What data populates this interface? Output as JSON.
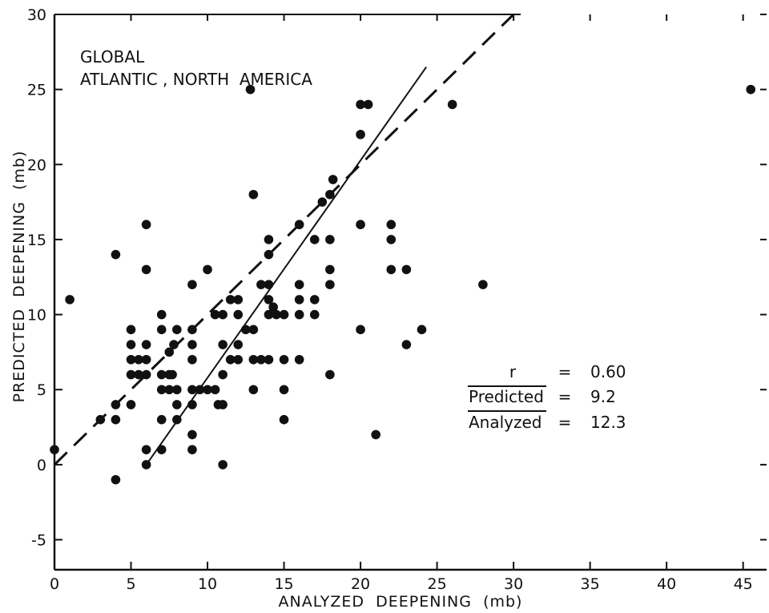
{
  "chart_data": {
    "type": "scatter",
    "title": "",
    "xlabel": "ANALYZED  DEEPENING  (mb)",
    "ylabel": "PREDICTED  DEEPENING  (mb)",
    "xlim": [
      0,
      45
    ],
    "ylim": [
      -7,
      30
    ],
    "xticks": [
      0,
      5,
      10,
      15,
      20,
      25,
      30,
      35,
      40,
      45
    ],
    "yticks": [
      -5,
      0,
      5,
      10,
      15,
      20,
      25,
      30
    ],
    "annotations": [
      "GLOBAL",
      "ATLANTIC , NORTH  AMERICA"
    ],
    "stats": [
      {
        "label": "r",
        "eq": "=",
        "value": "0.60",
        "overline": false
      },
      {
        "label": "Predicted",
        "eq": "=",
        "value": "9.2",
        "overline": true
      },
      {
        "label": "Analyzed",
        "eq": "=",
        "value": "12.3",
        "overline": true
      }
    ],
    "lines": [
      {
        "name": "",
        "style": "dashed",
        "points": [
          [
            0,
            0
          ],
          [
            30,
            30
          ]
        ]
      },
      {
        "name": "",
        "style": "solid",
        "points": [
          [
            6,
            0
          ],
          [
            24.3,
            26.5
          ]
        ]
      }
    ],
    "points": [
      [
        0,
        1
      ],
      [
        1,
        11
      ],
      [
        3,
        3
      ],
      [
        4,
        3
      ],
      [
        4,
        4
      ],
      [
        4,
        14
      ],
      [
        4,
        -1
      ],
      [
        5,
        4
      ],
      [
        5,
        6
      ],
      [
        5,
        7
      ],
      [
        5,
        8
      ],
      [
        5,
        9
      ],
      [
        5.5,
        7
      ],
      [
        5.5,
        6
      ],
      [
        6,
        7
      ],
      [
        6,
        8
      ],
      [
        6,
        6
      ],
      [
        6,
        16
      ],
      [
        6,
        13
      ],
      [
        6,
        1
      ],
      [
        6,
        0
      ],
      [
        7,
        1
      ],
      [
        7,
        3
      ],
      [
        7,
        5
      ],
      [
        7,
        6
      ],
      [
        7,
        9
      ],
      [
        7,
        10
      ],
      [
        7.5,
        5
      ],
      [
        7.5,
        6
      ],
      [
        7.5,
        7.5
      ],
      [
        7.7,
        6
      ],
      [
        7.8,
        8
      ],
      [
        8,
        3
      ],
      [
        8,
        4
      ],
      [
        8,
        5
      ],
      [
        8,
        9
      ],
      [
        9,
        1
      ],
      [
        9,
        2
      ],
      [
        9,
        4
      ],
      [
        9,
        5
      ],
      [
        9,
        7
      ],
      [
        9,
        8
      ],
      [
        9,
        9
      ],
      [
        9,
        12
      ],
      [
        9.5,
        5
      ],
      [
        10,
        5
      ],
      [
        10,
        13
      ],
      [
        10.5,
        5
      ],
      [
        11,
        0
      ],
      [
        11,
        4
      ],
      [
        11,
        6
      ],
      [
        11,
        8
      ],
      [
        11,
        10
      ],
      [
        10.7,
        4
      ],
      [
        10.5,
        10
      ],
      [
        11.5,
        7
      ],
      [
        11.5,
        11
      ],
      [
        12,
        7
      ],
      [
        12,
        8
      ],
      [
        12,
        10
      ],
      [
        12,
        11
      ],
      [
        12.5,
        9
      ],
      [
        13,
        5
      ],
      [
        13,
        7
      ],
      [
        13,
        9
      ],
      [
        13,
        18
      ],
      [
        12.8,
        25
      ],
      [
        13.5,
        7
      ],
      [
        13.5,
        12
      ],
      [
        14,
        7
      ],
      [
        14,
        10
      ],
      [
        14,
        11
      ],
      [
        14,
        12
      ],
      [
        14,
        14
      ],
      [
        14,
        15
      ],
      [
        14.3,
        10.5
      ],
      [
        14.5,
        10
      ],
      [
        15,
        3
      ],
      [
        15,
        5
      ],
      [
        15,
        7
      ],
      [
        15,
        10
      ],
      [
        16,
        7
      ],
      [
        16,
        10
      ],
      [
        16,
        11
      ],
      [
        16,
        12
      ],
      [
        16,
        16
      ],
      [
        17,
        10
      ],
      [
        17,
        11
      ],
      [
        17,
        15
      ],
      [
        17.5,
        17.5
      ],
      [
        18,
        6
      ],
      [
        18,
        12
      ],
      [
        18,
        13
      ],
      [
        18,
        15
      ],
      [
        18,
        18
      ],
      [
        18.2,
        19
      ],
      [
        20,
        9
      ],
      [
        20,
        16
      ],
      [
        20,
        22
      ],
      [
        20,
        24
      ],
      [
        20.5,
        24
      ],
      [
        21,
        2
      ],
      [
        22,
        13
      ],
      [
        22,
        15
      ],
      [
        22,
        16
      ],
      [
        23,
        8
      ],
      [
        23,
        13
      ],
      [
        24,
        9
      ],
      [
        26,
        24
      ],
      [
        28,
        12
      ],
      [
        45.5,
        25
      ]
    ]
  }
}
